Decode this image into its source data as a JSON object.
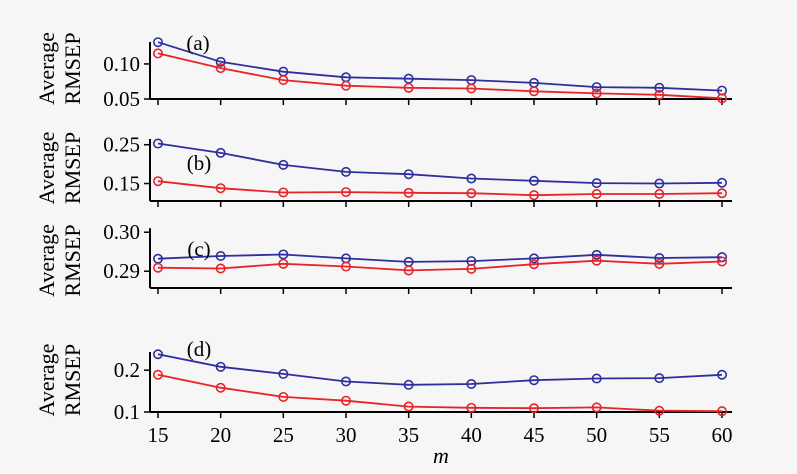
{
  "colors": {
    "series_1": "#2e2f9c",
    "series_2": "#e8232a",
    "axis": "#000000",
    "background": "#f6f6f6"
  },
  "xlabel": "m",
  "x_ticks": [
    "15",
    "20",
    "25",
    "30",
    "35",
    "40",
    "45",
    "50",
    "55",
    "60"
  ],
  "chart_data": [
    {
      "type": "line",
      "panel": "(a)",
      "ylabel": [
        "Average",
        "RMSEP"
      ],
      "x": [
        15,
        20,
        25,
        30,
        35,
        40,
        45,
        50,
        55,
        60
      ],
      "ylim": [
        0.05,
        0.137
      ],
      "yticks": [
        0.05,
        0.1
      ],
      "ytick_labels": [
        "0.05",
        "0.10"
      ],
      "series": [
        {
          "values": [
            0.131,
            0.103,
            0.089,
            0.081,
            0.079,
            0.077,
            0.073,
            0.067,
            0.066,
            0.062
          ],
          "color": "#2e2f9c"
        },
        {
          "values": [
            0.115,
            0.094,
            0.077,
            0.069,
            0.066,
            0.065,
            0.061,
            0.058,
            0.056,
            0.051
          ],
          "color": "#e8232a"
        }
      ]
    },
    {
      "type": "line",
      "panel": "(b)",
      "ylabel": [
        "Average",
        "RMSEP"
      ],
      "x": [
        15,
        20,
        25,
        30,
        35,
        40,
        45,
        50,
        55,
        60
      ],
      "ylim": [
        0.105,
        0.275
      ],
      "yticks": [
        0.15,
        0.25
      ],
      "ytick_labels": [
        "0.15",
        "0.25"
      ],
      "series": [
        {
          "values": [
            0.253,
            0.229,
            0.198,
            0.18,
            0.174,
            0.163,
            0.157,
            0.151,
            0.15,
            0.152
          ],
          "color": "#2e2f9c"
        },
        {
          "values": [
            0.156,
            0.138,
            0.127,
            0.128,
            0.126,
            0.125,
            0.12,
            0.123,
            0.123,
            0.125
          ],
          "color": "#e8232a"
        }
      ]
    },
    {
      "type": "line",
      "panel": "(c)",
      "ylabel": [
        "Average",
        "RMSEP"
      ],
      "x": [
        15,
        20,
        25,
        30,
        35,
        40,
        45,
        50,
        55,
        60
      ],
      "ylim": [
        0.2857,
        0.2998
      ],
      "yticks": [
        0.29,
        0.3
      ],
      "ytick_labels": [
        "0.29",
        "0.30"
      ],
      "series": [
        {
          "values": [
            0.2932,
            0.2939,
            0.2943,
            0.2933,
            0.2924,
            0.2926,
            0.2933,
            0.2942,
            0.2934,
            0.2936
          ],
          "color": "#2e2f9c"
        },
        {
          "values": [
            0.2909,
            0.2907,
            0.2919,
            0.2912,
            0.2902,
            0.2906,
            0.2918,
            0.2927,
            0.2919,
            0.2925
          ],
          "color": "#e8232a"
        }
      ]
    },
    {
      "type": "line",
      "panel": "(d)",
      "ylabel": [
        "Average",
        "RMSEP"
      ],
      "x": [
        15,
        20,
        25,
        30,
        35,
        40,
        45,
        50,
        55,
        60
      ],
      "ylim": [
        0.1,
        0.253
      ],
      "yticks": [
        0.1,
        0.2
      ],
      "ytick_labels": [
        "0.1",
        "0.2"
      ],
      "series": [
        {
          "values": [
            0.238,
            0.208,
            0.191,
            0.173,
            0.165,
            0.167,
            0.176,
            0.18,
            0.181,
            0.189
          ],
          "color": "#2e2f9c"
        },
        {
          "values": [
            0.189,
            0.158,
            0.136,
            0.127,
            0.113,
            0.11,
            0.109,
            0.111,
            0.103,
            0.102
          ],
          "color": "#e8232a"
        }
      ]
    }
  ]
}
